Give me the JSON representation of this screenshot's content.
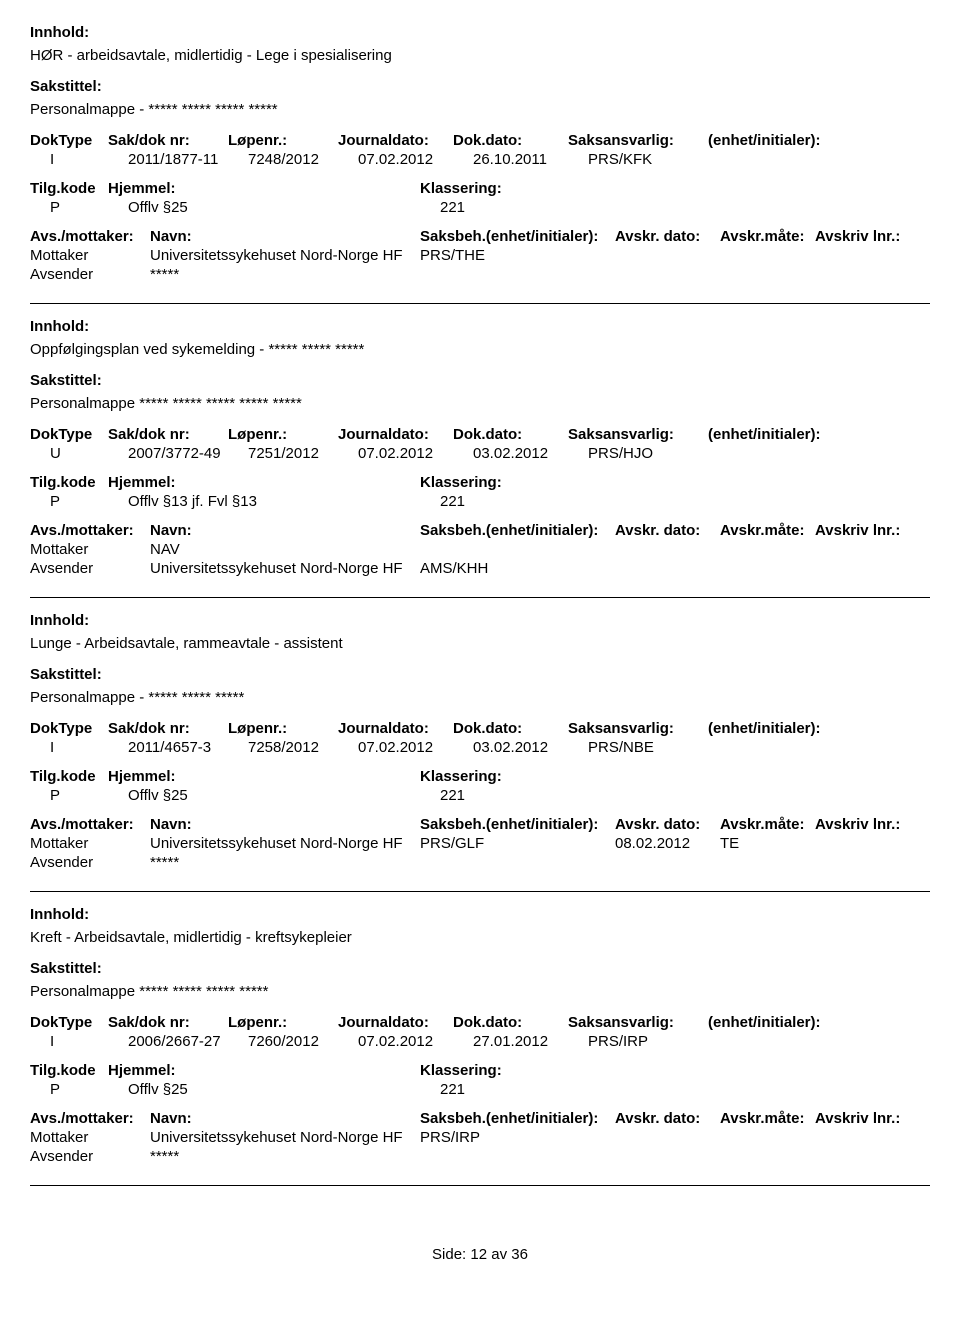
{
  "labels": {
    "innhold": "Innhold:",
    "sakstittel": "Sakstittel:",
    "doktype": "DokType",
    "sakdoknr": "Sak/dok nr:",
    "lopenr": "Løpenr.:",
    "journaldato": "Journaldato:",
    "dokdato": "Dok.dato:",
    "saksansvarlig": "Saksansvarlig:",
    "enhetinit": "(enhet/initialer):",
    "tilgkode": "Tilg.kode",
    "hjemmel": "Hjemmel:",
    "klassering": "Klassering:",
    "avsmottaker": "Avs./mottaker:",
    "navn": "Navn:",
    "saksbeh": "Saksbeh.(enhet/initialer):",
    "avskrdato": "Avskr. dato:",
    "avskrmate": "Avskr.måte:",
    "avskrivlnr": "Avskriv lnr.:",
    "mottaker": "Mottaker",
    "avsender": "Avsender",
    "side": "Side:",
    "av": "av"
  },
  "records": [
    {
      "innhold": "HØR - arbeidsavtale, midlertidig - Lege i spesialisering",
      "sakstittel": "Personalmappe - ***** ***** ***** *****",
      "doktype": "I",
      "sakdoknr": "2011/1877-11",
      "lopenr": "7248/2012",
      "journaldato": "07.02.2012",
      "dokdato": "26.10.2011",
      "saksansvarlig": "PRS/KFK",
      "tilgkode": "P",
      "hjemmel": "Offlv §25",
      "klassering": "221",
      "parties": [
        {
          "role": "Mottaker",
          "name": "Universitetssykehuset Nord-Norge HF",
          "saksbeh": "PRS/THE",
          "avskrdato": "",
          "avskrmate": "",
          "avskrivlnr": ""
        },
        {
          "role": "Avsender",
          "name": "*****",
          "saksbeh": "",
          "avskrdato": "",
          "avskrmate": "",
          "avskrivlnr": ""
        }
      ]
    },
    {
      "innhold": "Oppfølgingsplan ved sykemelding - ***** ***** *****",
      "sakstittel": "Personalmappe ***** ***** ***** ***** *****",
      "doktype": "U",
      "sakdoknr": "2007/3772-49",
      "lopenr": "7251/2012",
      "journaldato": "07.02.2012",
      "dokdato": "03.02.2012",
      "saksansvarlig": "PRS/HJO",
      "tilgkode": "P",
      "hjemmel": "Offlv §13 jf. Fvl §13",
      "klassering": "221",
      "parties": [
        {
          "role": "Mottaker",
          "name": "NAV",
          "saksbeh": "",
          "avskrdato": "",
          "avskrmate": "",
          "avskrivlnr": ""
        },
        {
          "role": "Avsender",
          "name": "Universitetssykehuset Nord-Norge HF",
          "saksbeh": "AMS/KHH",
          "avskrdato": "",
          "avskrmate": "",
          "avskrivlnr": ""
        }
      ]
    },
    {
      "innhold": "Lunge - Arbeidsavtale, rammeavtale - assistent",
      "sakstittel": "Personalmappe - ***** ***** *****",
      "doktype": "I",
      "sakdoknr": "2011/4657-3",
      "lopenr": "7258/2012",
      "journaldato": "07.02.2012",
      "dokdato": "03.02.2012",
      "saksansvarlig": "PRS/NBE",
      "tilgkode": "P",
      "hjemmel": "Offlv §25",
      "klassering": "221",
      "parties": [
        {
          "role": "Mottaker",
          "name": "Universitetssykehuset Nord-Norge HF",
          "saksbeh": "PRS/GLF",
          "avskrdato": "08.02.2012",
          "avskrmate": "TE",
          "avskrivlnr": ""
        },
        {
          "role": "Avsender",
          "name": "*****",
          "saksbeh": "",
          "avskrdato": "",
          "avskrmate": "",
          "avskrivlnr": ""
        }
      ]
    },
    {
      "innhold": "Kreft - Arbeidsavtale, midlertidig - kreftsykepleier",
      "sakstittel": "Personalmappe ***** ***** ***** *****",
      "doktype": "I",
      "sakdoknr": "2006/2667-27",
      "lopenr": "7260/2012",
      "journaldato": "07.02.2012",
      "dokdato": "27.01.2012",
      "saksansvarlig": "PRS/IRP",
      "tilgkode": "P",
      "hjemmel": "Offlv §25",
      "klassering": "221",
      "parties": [
        {
          "role": "Mottaker",
          "name": "Universitetssykehuset Nord-Norge HF",
          "saksbeh": "PRS/IRP",
          "avskrdato": "",
          "avskrmate": "",
          "avskrivlnr": ""
        },
        {
          "role": "Avsender",
          "name": "*****",
          "saksbeh": "",
          "avskrdato": "",
          "avskrmate": "",
          "avskrivlnr": ""
        }
      ]
    }
  ],
  "footer": {
    "page": "12",
    "total": "36"
  }
}
